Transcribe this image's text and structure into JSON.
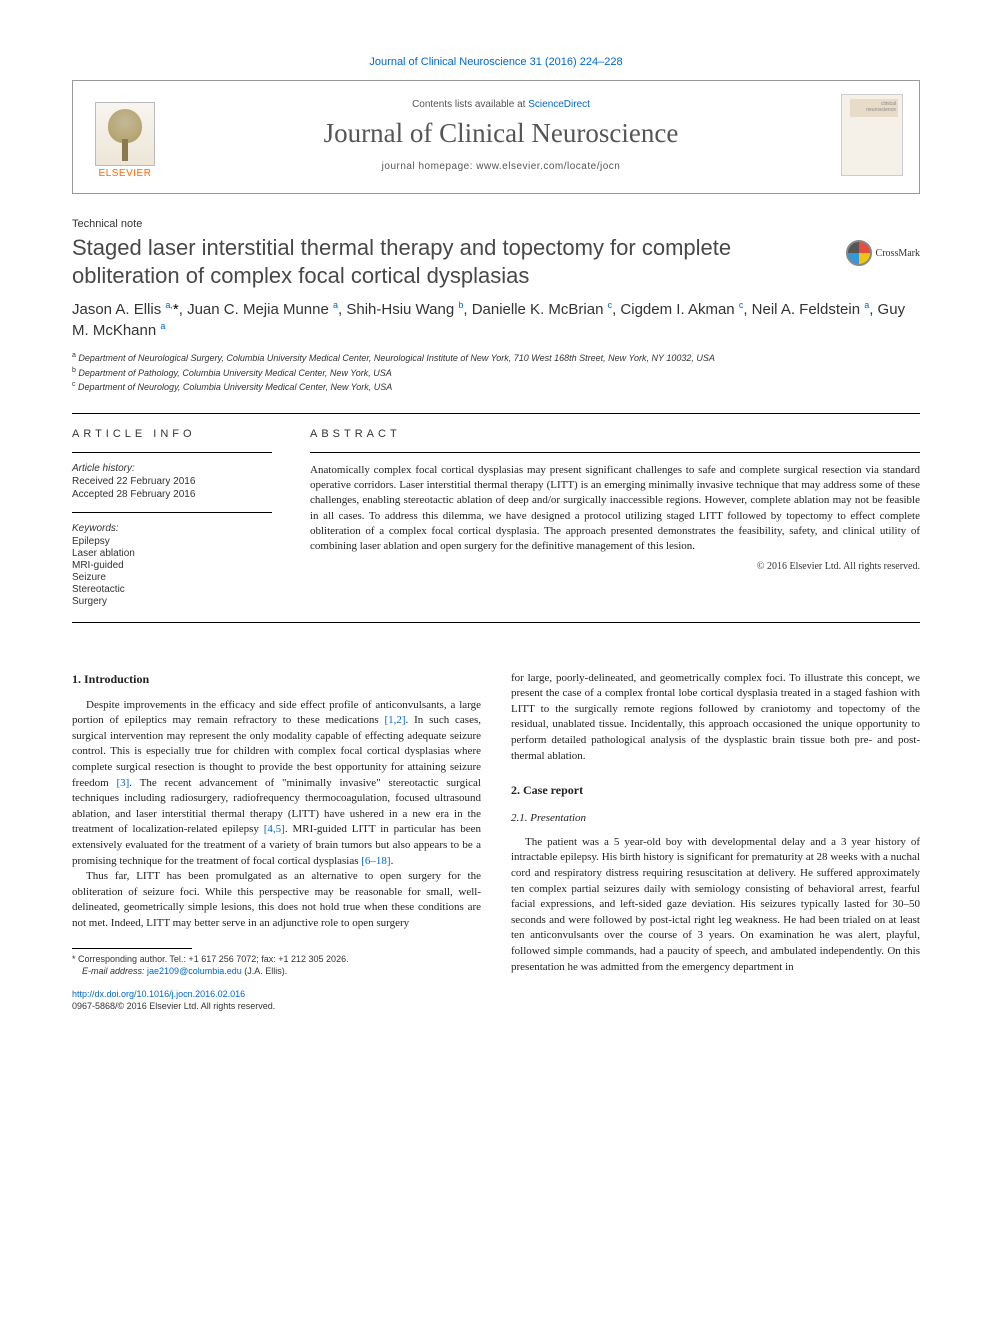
{
  "top_link": "Journal of Clinical Neuroscience 31 (2016) 224–228",
  "header": {
    "elsevier": "ELSEVIER",
    "contents_prefix": "Contents lists available at ",
    "contents_link": "ScienceDirect",
    "journal_title": "Journal of Clinical Neuroscience",
    "homepage_prefix": "journal homepage: ",
    "homepage_url": "www.elsevier.com/locate/jocn"
  },
  "article_type": "Technical note",
  "title": "Staged laser interstitial thermal therapy and topectomy for complete obliteration of complex focal cortical dysplasias",
  "crossmark": "CrossMark",
  "authors_html": "Jason A. Ellis <sup>a,</sup><span class='star'>*</span>, Juan C. Mejia Munne <sup>a</sup>, Shih-Hsiu Wang <sup>b</sup>, Danielle K. McBrian <sup>c</sup>, Cigdem I. Akman <sup>c</sup>, Neil A. Feldstein <sup>a</sup>, Guy M. McKhann <sup>a</sup>",
  "affiliations": {
    "a": "Department of Neurological Surgery, Columbia University Medical Center, Neurological Institute of New York, 710 West 168th Street, New York, NY 10032, USA",
    "b": "Department of Pathology, Columbia University Medical Center, New York, USA",
    "c": "Department of Neurology, Columbia University Medical Center, New York, USA"
  },
  "info": {
    "head": "ARTICLE INFO",
    "history_label": "Article history:",
    "received": "Received 22 February 2016",
    "accepted": "Accepted 28 February 2016",
    "keywords_label": "Keywords:",
    "keywords": [
      "Epilepsy",
      "Laser ablation",
      "MRI-guided",
      "Seizure",
      "Stereotactic",
      "Surgery"
    ]
  },
  "abstract": {
    "head": "ABSTRACT",
    "text": "Anatomically complex focal cortical dysplasias may present significant challenges to safe and complete surgical resection via standard operative corridors. Laser interstitial thermal therapy (LITT) is an emerging minimally invasive technique that may address some of these challenges, enabling stereotactic ablation of deep and/or surgically inaccessible regions. However, complete ablation may not be feasible in all cases. To address this dilemma, we have designed a protocol utilizing staged LITT followed by topectomy to effect complete obliteration of a complex focal cortical dysplasia. The approach presented demonstrates the feasibility, safety, and clinical utility of combining laser ablation and open surgery for the definitive management of this lesion.",
    "copyright": "© 2016 Elsevier Ltd. All rights reserved."
  },
  "body": {
    "s1_head": "1. Introduction",
    "s1_p1_a": "Despite improvements in the efficacy and side effect profile of anticonvulsants, a large portion of epileptics may remain refractory to these medications ",
    "s1_p1_ref1": "[1,2]",
    "s1_p1_b": ". In such cases, surgical intervention may represent the only modality capable of effecting adequate seizure control. This is especially true for children with complex focal cortical dysplasias where complete surgical resection is thought to provide the best opportunity for attaining seizure freedom ",
    "s1_p1_ref2": "[3]",
    "s1_p1_c": ". The recent advancement of \"minimally invasive\" stereotactic surgical techniques including radiosurgery, radiofrequency thermocoagulation, focused ultrasound ablation, and laser interstitial thermal therapy (LITT) have ushered in a new era in the treatment of localization-related epilepsy ",
    "s1_p1_ref3": "[4,5]",
    "s1_p1_d": ". MRI-guided LITT in particular has been extensively evaluated for the treatment of a variety of brain tumors but also appears to be a promising technique for the treatment of focal cortical dysplasias ",
    "s1_p1_ref4": "[6–18]",
    "s1_p1_e": ".",
    "s1_p2": "Thus far, LITT has been promulgated as an alternative to open surgery for the obliteration of seizure foci. While this perspective may be reasonable for small, well-delineated, geometrically simple lesions, this does not hold true when these conditions are not met. Indeed, LITT may better serve in an adjunctive role to open surgery",
    "s1_p2_cont": "for large, poorly-delineated, and geometrically complex foci. To illustrate this concept, we present the case of a complex frontal lobe cortical dysplasia treated in a staged fashion with LITT to the surgically remote regions followed by craniotomy and topectomy of the residual, unablated tissue. Incidentally, this approach occasioned the unique opportunity to perform detailed pathological analysis of the dysplastic brain tissue both pre- and post-thermal ablation.",
    "s2_head": "2. Case report",
    "s2_1_head": "2.1. Presentation",
    "s2_1_p1": "The patient was a 5 year-old boy with developmental delay and a 3 year history of intractable epilepsy. His birth history is significant for prematurity at 28 weeks with a nuchal cord and respiratory distress requiring resuscitation at delivery. He suffered approximately ten complex partial seizures daily with semiology consisting of behavioral arrest, fearful facial expressions, and left-sided gaze deviation. His seizures typically lasted for 30–50 seconds and were followed by post-ictal right leg weakness. He had been trialed on at least ten anticonvulsants over the course of 3 years. On examination he was alert, playful, followed simple commands, had a paucity of speech, and ambulated independently. On this presentation he was admitted from the emergency department in"
  },
  "footnote": {
    "corr": "Corresponding author. Tel.: +1 617 256 7072; fax: +1 212 305 2026.",
    "email_label": "E-mail address: ",
    "email": "jae2109@columbia.edu",
    "email_who": " (J.A. Ellis)."
  },
  "doi": {
    "url": "http://dx.doi.org/10.1016/j.jocn.2016.02.016",
    "issn_line": "0967-5868/© 2016 Elsevier Ltd. All rights reserved."
  }
}
